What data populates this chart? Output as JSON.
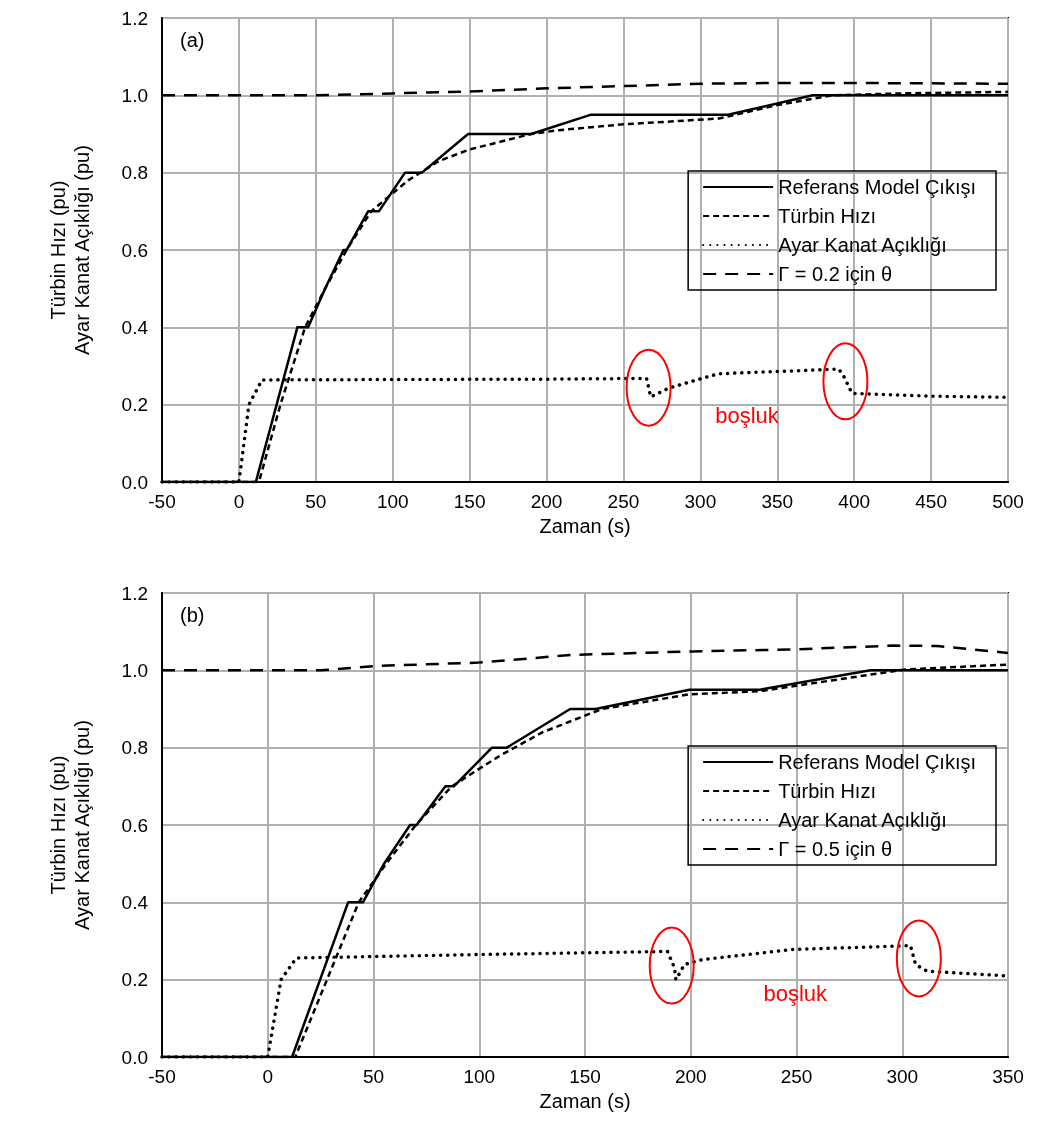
{
  "chart_data": [
    {
      "type": "line",
      "xlabel": "Zaman (s)",
      "ylabel": "Türbin Hızı (pu)\nAyar Kanat Açıklığı (pu)",
      "xlim": [
        -50,
        500
      ],
      "xticks": [
        -50,
        0,
        50,
        100,
        150,
        200,
        250,
        300,
        350,
        400,
        450,
        500
      ],
      "ylim": [
        0,
        1.2
      ],
      "yticks": [
        {
          "value": 0,
          "label": "0.0"
        },
        {
          "value": 0.2,
          "label": "0.2"
        },
        {
          "value": 0.4,
          "label": "0.4"
        },
        {
          "value": 0.6,
          "label": "0.6"
        },
        {
          "value": 0.8,
          "label": "0.8"
        },
        {
          "value": 1,
          "label": "1.0"
        },
        {
          "value": 1.2,
          "label": "1.2"
        }
      ],
      "grid": true,
      "legend": "right",
      "marker": "none",
      "annotations": [
        "(a)",
        "boşluk"
      ],
      "series": [
        {
          "name": "Referans Model Çıkışı",
          "color": "#000000",
          "line_style": "solid",
          "x": [
            -50,
            11,
            38,
            45,
            56,
            68,
            70,
            84,
            91,
            108,
            119,
            149,
            190,
            229,
            318,
            373,
            500
          ],
          "values": [
            0,
            0,
            0.4,
            0.4,
            0.5,
            0.6,
            0.6,
            0.7,
            0.7,
            0.8,
            0.8,
            0.9,
            0.9,
            0.95,
            0.95,
            1,
            1
          ]
        },
        {
          "name": "Türbin Hızı",
          "color": "#000000",
          "line_style": "dashed",
          "x": [
            -50,
            13,
            27,
            43,
            56,
            70,
            86,
            110,
            130,
            150,
            190,
            208,
            250,
            312,
            350,
            386,
            430,
            500
          ],
          "values": [
            0,
            0,
            0.2,
            0.4,
            0.5,
            0.6,
            0.7,
            0.78,
            0.83,
            0.86,
            0.9,
            0.91,
            0.925,
            0.94,
            0.975,
            1.0,
            1.005,
            1.009
          ]
        },
        {
          "name": "Ayar Kanat Açıklığı",
          "color": "#000000",
          "line_style": "dotted",
          "x": [
            -50,
            0,
            6.5,
            15,
            100,
            200,
            265,
            267.7,
            279.6,
            301,
            312,
            390,
            393.4,
            398.6,
            450,
            498.5
          ],
          "values": [
            0,
            0,
            0.2,
            0.264,
            0.265,
            0.266,
            0.268,
            0.22,
            0.243,
            0.268,
            0.28,
            0.292,
            0.272,
            0.229,
            0.222,
            0.219
          ]
        },
        {
          "name": "Γ = 0.2 için θ",
          "color": "#000000",
          "line_style": "dashed",
          "x": [
            -50,
            50,
            100,
            150,
            200,
            250,
            300,
            350,
            400,
            500
          ],
          "values": [
            1,
            1,
            1.005,
            1.01,
            1.018,
            1.024,
            1.03,
            1.032,
            1.032,
            1.03
          ]
        }
      ]
    },
    {
      "type": "line",
      "xlabel": "Zaman (s)",
      "ylabel": "Türbin Hızı (pu)\nAyar Kanat Açıklığı (pu)",
      "xlim": [
        -50,
        350
      ],
      "xticks": [
        -50,
        0,
        50,
        100,
        150,
        200,
        250,
        300,
        350
      ],
      "ylim": [
        0,
        1.2
      ],
      "yticks": [
        {
          "value": 0,
          "label": "0.0"
        },
        {
          "value": 0.2,
          "label": "0.2"
        },
        {
          "value": 0.4,
          "label": "0.4"
        },
        {
          "value": 0.6,
          "label": "0.6"
        },
        {
          "value": 0.8,
          "label": "0.8"
        },
        {
          "value": 1,
          "label": "1.0"
        },
        {
          "value": 1.2,
          "label": "1.2"
        }
      ],
      "grid": true,
      "legend": "right",
      "marker": "none",
      "annotations": [
        "(b)",
        "boşluk"
      ],
      "series": [
        {
          "name": "Referans Model Çıkışı",
          "color": "#000000",
          "line_style": "solid",
          "x": [
            -50,
            11.5,
            38,
            45,
            55,
            67.3,
            70.4,
            84,
            88,
            106,
            113,
            143,
            155,
            199.4,
            232.7,
            285,
            350
          ],
          "values": [
            0,
            0,
            0.4,
            0.4,
            0.5,
            0.6,
            0.6,
            0.7,
            0.7,
            0.8,
            0.8,
            0.9,
            0.9,
            0.95,
            0.95,
            1,
            1
          ]
        },
        {
          "name": "Türbin Hızı",
          "color": "#000000",
          "line_style": "dashed",
          "x": [
            -50,
            13,
            28,
            43,
            56,
            70,
            87,
            110,
            130,
            158,
            199.4,
            232.7,
            285,
            301.5,
            350
          ],
          "values": [
            0,
            0,
            0.2,
            0.4,
            0.5,
            0.6,
            0.7,
            0.78,
            0.84,
            0.9,
            0.938,
            0.946,
            0.989,
            1.002,
            1.015
          ]
        },
        {
          "name": "Ayar Kanat Açıklığı",
          "color": "#000000",
          "line_style": "dotted",
          "x": [
            -50,
            0,
            6.3,
            13.5,
            100,
            189,
            192.3,
            193,
            197,
            205.6,
            248,
            303.9,
            306.3,
            311.8,
            349
          ],
          "values": [
            0,
            0,
            0.2,
            0.256,
            0.265,
            0.273,
            0.231,
            0.2,
            0.239,
            0.252,
            0.278,
            0.288,
            0.239,
            0.222,
            0.21
          ]
        },
        {
          "name": "Γ = 0.5 için θ",
          "color": "#000000",
          "line_style": "dashed",
          "x": [
            -50,
            25,
            50,
            99.7,
            144,
            201,
            248,
            296,
            316.5,
            346.6,
            350
          ],
          "values": [
            1,
            1,
            1.011,
            1.02,
            1.04,
            1.049,
            1.054,
            1.064,
            1.063,
            1.047,
            1.045
          ]
        }
      ]
    }
  ]
}
